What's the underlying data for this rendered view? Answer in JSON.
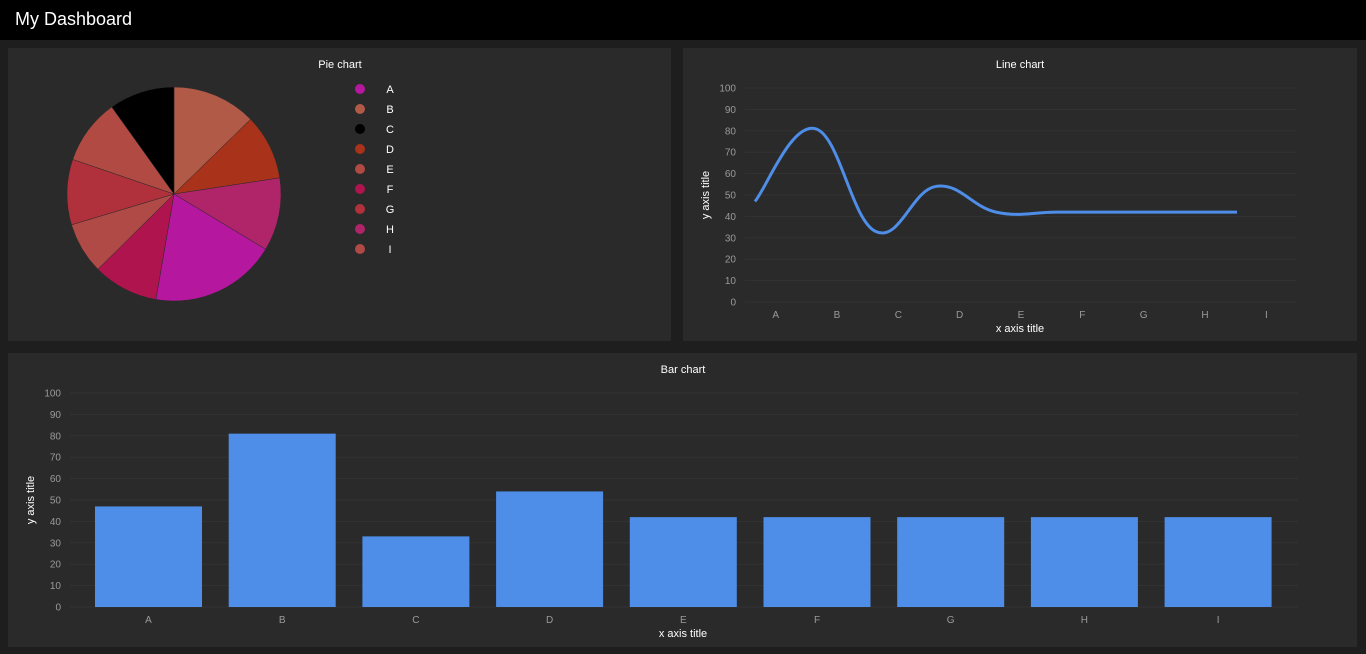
{
  "app": {
    "title": "My Dashboard"
  },
  "colors": {
    "header_bg": "#000000",
    "page_bg": "#1e1e1e",
    "panel_bg": "#2a2a2a",
    "series": "#4e8ee8"
  },
  "chart_data": [
    {
      "id": "pie",
      "type": "pie",
      "title": "Pie chart",
      "categories": [
        "A",
        "B",
        "C",
        "D",
        "E",
        "F",
        "G",
        "H",
        "I"
      ],
      "values": [
        81,
        54,
        42,
        42,
        42,
        42,
        42,
        47,
        33
      ],
      "slice_order": [
        "B",
        "D",
        "H",
        "A",
        "F",
        "I",
        "G",
        "E",
        "C"
      ],
      "colors": [
        "#b5179e",
        "#b05a47",
        "#000000",
        "#a8321a",
        "#b04a42",
        "#b0144f",
        "#b0303c",
        "#b0246a",
        "#b04a46"
      ],
      "legend": "right"
    },
    {
      "id": "line",
      "type": "line",
      "title": "Line chart",
      "categories": [
        "A",
        "B",
        "C",
        "D",
        "E",
        "F",
        "G",
        "H",
        "I"
      ],
      "values": [
        47,
        81,
        33,
        54,
        42,
        42,
        42,
        42,
        42
      ],
      "xlabel": "x axis title",
      "ylabel": "y axis title",
      "ylim": [
        0,
        100
      ],
      "yticks": [
        0,
        10,
        20,
        30,
        40,
        50,
        60,
        70,
        80,
        90,
        100
      ]
    },
    {
      "id": "bar",
      "type": "bar",
      "title": "Bar chart",
      "categories": [
        "A",
        "B",
        "C",
        "D",
        "E",
        "F",
        "G",
        "H",
        "I"
      ],
      "values": [
        47,
        81,
        33,
        54,
        42,
        42,
        42,
        42,
        42
      ],
      "xlabel": "x axis title",
      "ylabel": "y axis title",
      "ylim": [
        0,
        100
      ],
      "yticks": [
        0,
        10,
        20,
        30,
        40,
        50,
        60,
        70,
        80,
        90,
        100
      ]
    }
  ]
}
